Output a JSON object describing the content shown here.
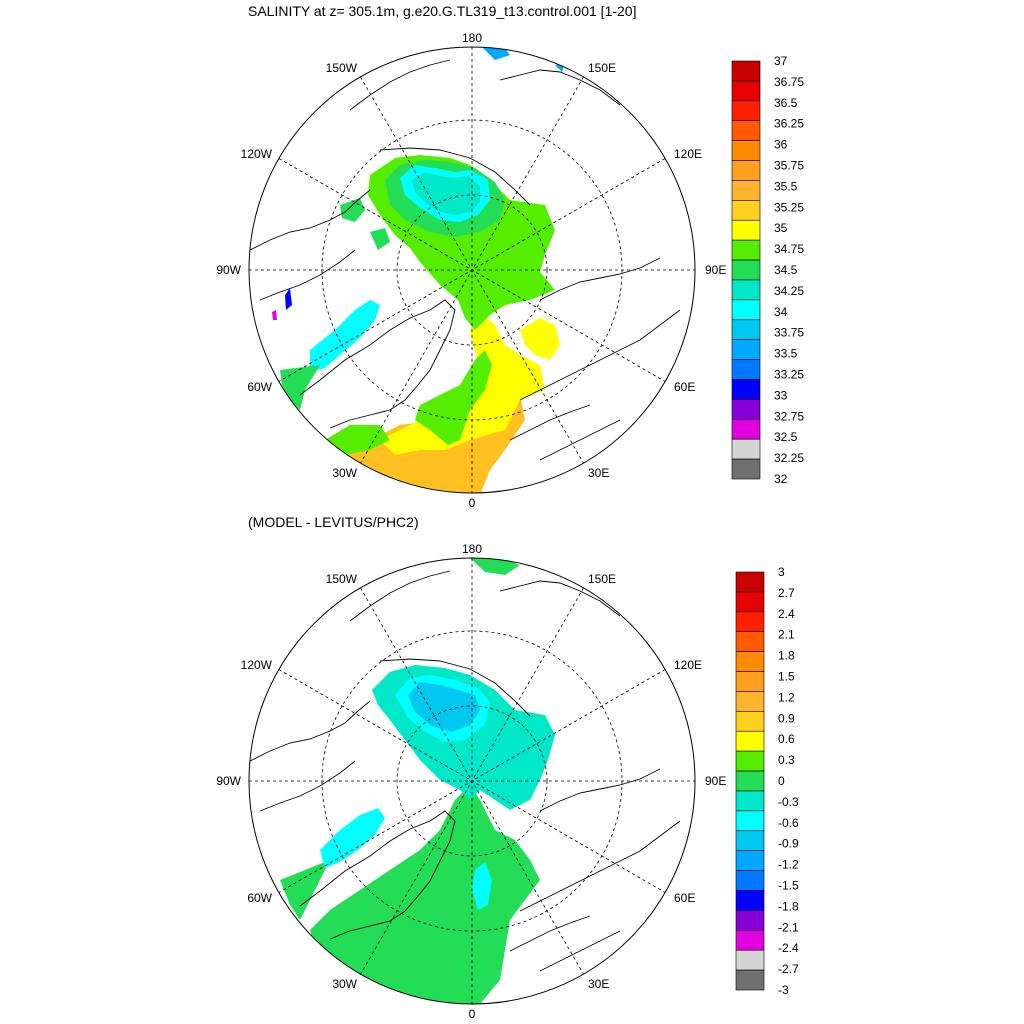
{
  "panels": [
    {
      "title": "SALINITY at z= 305.1m, g.e20.G.TL319_t13.control.001 [1-20]",
      "colorbar": {
        "labels": [
          "37",
          "36.75",
          "36.5",
          "36.25",
          "36",
          "35.75",
          "35.5",
          "35.25",
          "35",
          "34.75",
          "34.5",
          "34.25",
          "34",
          "33.75",
          "33.5",
          "33.25",
          "33",
          "32.75",
          "32.5",
          "32.25",
          "32"
        ],
        "colors": [
          "#c80000",
          "#e60000",
          "#ff2000",
          "#ff5a00",
          "#ff8c00",
          "#ffa020",
          "#ffb430",
          "#ffd020",
          "#ffff00",
          "#55ee00",
          "#22dd55",
          "#00e8c8",
          "#00ffff",
          "#00c8f0",
          "#00a8ff",
          "#0078ff",
          "#0000ff",
          "#8800d8",
          "#e000e0",
          "#d4d4d4",
          "#707070"
        ]
      }
    },
    {
      "title": "(MODEL - LEVITUS/PHC2)",
      "colorbar": {
        "labels": [
          "3",
          "2.7",
          "2.4",
          "2.1",
          "1.8",
          "1.5",
          "1.2",
          "0.9",
          "0.6",
          "0.3",
          "0",
          "-0.3",
          "-0.6",
          "-0.9",
          "-1.2",
          "-1.5",
          "-1.8",
          "-2.1",
          "-2.4",
          "-2.7",
          "-3"
        ],
        "colors": [
          "#c80000",
          "#e60000",
          "#ff2000",
          "#ff5a00",
          "#ff8c00",
          "#ffa020",
          "#ffb430",
          "#ffd020",
          "#ffff00",
          "#55ee00",
          "#22dd55",
          "#00e8c8",
          "#00ffff",
          "#00c8f0",
          "#00a8ff",
          "#0078ff",
          "#0000ff",
          "#8800d8",
          "#e000e0",
          "#d4d4d4",
          "#707070"
        ]
      }
    }
  ],
  "longitude_labels": {
    "top": "180",
    "bottom": "0",
    "left": "90W",
    "right": "90E",
    "upper_left_1": "150W",
    "upper_left_2": "120W",
    "lower_left_1": "60W",
    "lower_left_2": "30W",
    "upper_right_1": "150E",
    "upper_right_2": "120E",
    "lower_right_1": "60E",
    "lower_right_2": "30E"
  },
  "legend_colors": {
    "coast": "#000000",
    "grid": "#000000",
    "land": "#ffffff"
  }
}
